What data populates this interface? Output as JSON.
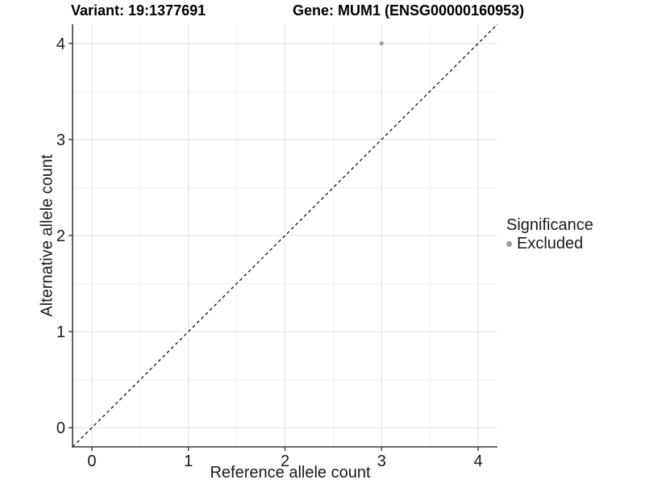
{
  "titles": {
    "variant": "Variant: 19:1377691",
    "gene": "Gene: MUM1 (ENSG00000160953)"
  },
  "axes": {
    "x_label": "Reference allele count",
    "y_label": "Alternative allele count"
  },
  "legend": {
    "title": "Significance",
    "position": "right",
    "items": [
      {
        "label": "Excluded",
        "color": "#9e9e9e"
      }
    ]
  },
  "chart_data": {
    "type": "scatter",
    "title": "Variant: 19:1377691   Gene: MUM1 (ENSG00000160953)",
    "xlabel": "Reference allele count",
    "ylabel": "Alternative allele count",
    "xlim": [
      -0.2,
      4.2
    ],
    "ylim": [
      -0.2,
      4.2
    ],
    "x_ticks": [
      0,
      1,
      2,
      3,
      4
    ],
    "y_ticks": [
      0,
      1,
      2,
      3,
      4
    ],
    "x_minor_ticks": [
      0.5,
      1.5,
      2.5,
      3.5
    ],
    "y_minor_ticks": [
      0.5,
      1.5,
      2.5,
      3.5
    ],
    "grid": true,
    "legend_position": "right",
    "series": [
      {
        "name": "Excluded",
        "color": "#9e9e9e",
        "points": [
          {
            "x": 3,
            "y": 4
          }
        ]
      }
    ],
    "reference_line": {
      "kind": "identity",
      "from": [
        -0.2,
        -0.2
      ],
      "to": [
        4.2,
        4.2
      ],
      "style": "dashed",
      "color": "#000000"
    },
    "style": {
      "background": "#ffffff",
      "grid_major_color": "#e2e2e2",
      "grid_minor_color": "#f0f0f0",
      "axis_line_color": "#3c3c3c",
      "tick_label_color": "#1a1a1a",
      "point_radius_px": 2.6
    }
  }
}
